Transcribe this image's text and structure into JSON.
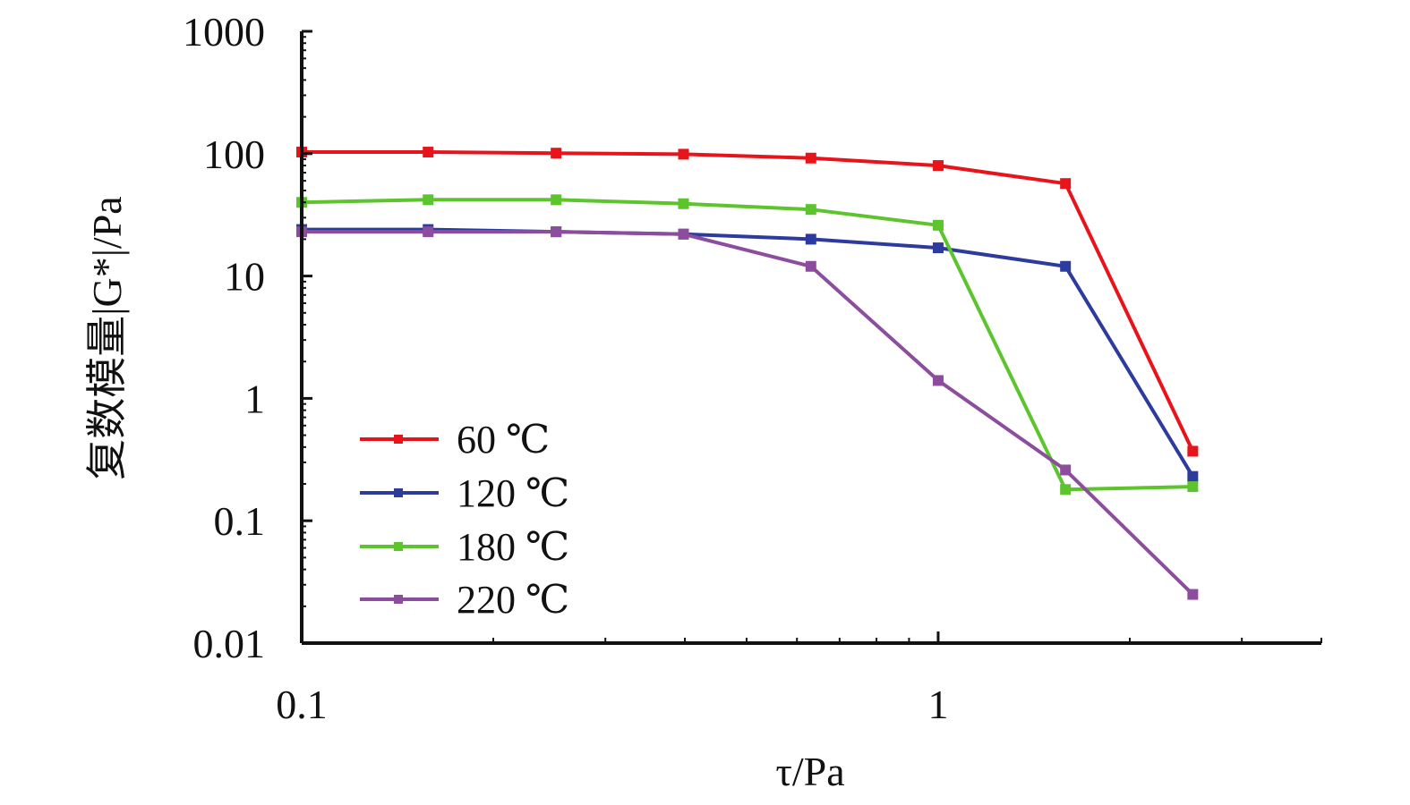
{
  "chart_data": {
    "type": "line",
    "xscale": "log",
    "yscale": "log",
    "xlim": [
      0.1,
      4
    ],
    "ylim": [
      0.01,
      1000
    ],
    "x_ticks": [
      {
        "value": 0.1,
        "label": "0.1"
      },
      {
        "value": 1,
        "label": "1"
      }
    ],
    "y_ticks": [
      {
        "value": 0.01,
        "label": "0.01"
      },
      {
        "value": 0.1,
        "label": "0.1"
      },
      {
        "value": 1,
        "label": "1"
      },
      {
        "value": 10,
        "label": "10"
      },
      {
        "value": 100,
        "label": "100"
      },
      {
        "value": 1000,
        "label": "1000"
      }
    ],
    "xlabel": "τ/Pa",
    "ylabel": "复数模量|G*|/Pa",
    "grid": false,
    "legend_position": "bottom-left",
    "x": [
      0.1,
      0.158,
      0.251,
      0.398,
      0.631,
      1.0,
      1.585,
      2.512
    ],
    "series": [
      {
        "name": "60 ℃",
        "color": "#e8141c",
        "values": [
          103,
          103,
          101,
          99,
          92,
          80,
          57,
          0.37
        ]
      },
      {
        "name": "120 ℃",
        "color": "#2e3b9e",
        "values": [
          24,
          24,
          23,
          22,
          20,
          17,
          12,
          0.23
        ]
      },
      {
        "name": "180 ℃",
        "color": "#5cc42c",
        "values": [
          40,
          42,
          42,
          39,
          35,
          26,
          0.18,
          0.19
        ]
      },
      {
        "name": "220 ℃",
        "color": "#8c4d9e",
        "values": [
          23,
          23,
          23,
          22,
          12,
          1.4,
          0.26,
          0.025
        ]
      }
    ]
  }
}
